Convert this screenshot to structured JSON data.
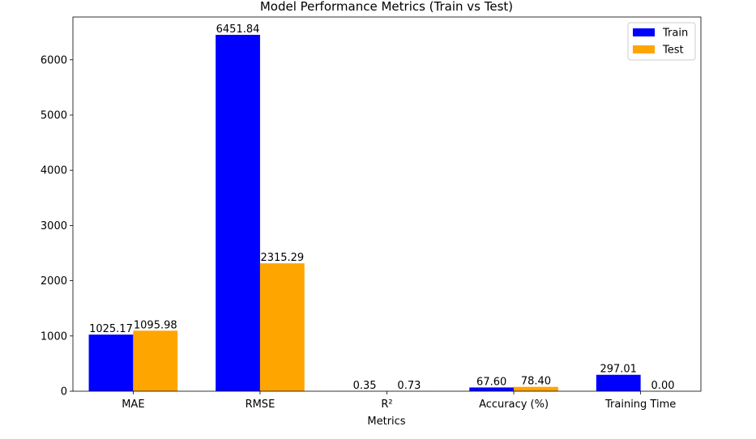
{
  "chart_data": {
    "type": "bar",
    "title": "Model Performance Metrics (Train vs Test)",
    "xlabel": "Metrics",
    "ylabel": "",
    "categories": [
      "MAE",
      "RMSE",
      "R²",
      "Accuracy (%)",
      "Training Time"
    ],
    "series": [
      {
        "name": "Train",
        "color": "#0000ff",
        "values": [
          1025.17,
          6451.84,
          0.35,
          67.6,
          297.01
        ],
        "labels": [
          "1025.17",
          "6451.84",
          "0.35",
          "67.60",
          "297.01"
        ]
      },
      {
        "name": "Test",
        "color": "#ffa500",
        "values": [
          1095.98,
          2315.29,
          0.73,
          78.4,
          0.0
        ],
        "labels": [
          "1095.98",
          "2315.29",
          "0.73",
          "78.40",
          "0.00"
        ]
      }
    ],
    "ylim": [
      0,
      6774.4
    ],
    "yticks": [
      0,
      1000,
      2000,
      3000,
      4000,
      5000,
      6000
    ],
    "ytick_labels": [
      "0",
      "1000",
      "2000",
      "3000",
      "4000",
      "5000",
      "6000"
    ],
    "grid": false,
    "legend_position": "top-right"
  }
}
